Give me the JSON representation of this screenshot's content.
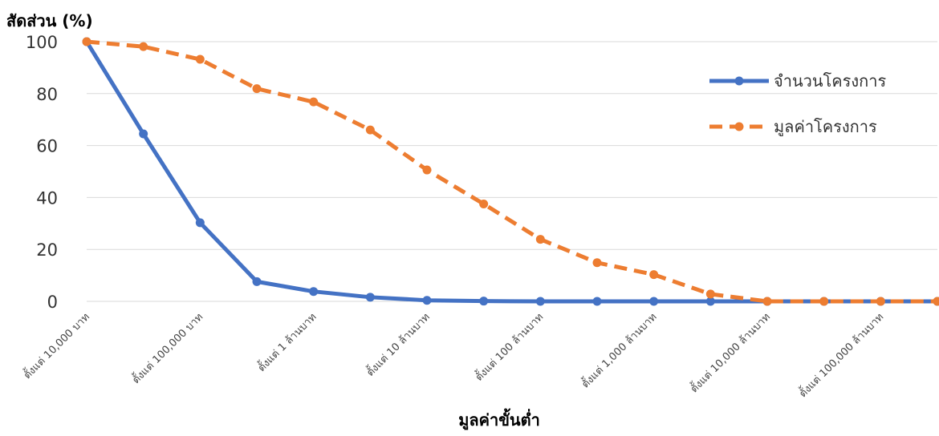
{
  "chart_data": {
    "type": "line",
    "title": "",
    "ylabel": "สัดส่วน (%)",
    "xlabel": "มูลค่าขั้นต่ำ",
    "categories": [
      "ตั้งแต่ 10,000 บาท",
      "ตั้งแต่ 100,000 บาท",
      "ตั้งแต่ 1 ล้านบาท",
      "ตั้งแต่ 10 ล้านบาท",
      "ตั้งแต่ 100 ล้านบาท",
      "ตั้งแต่ 1,000 ล้านบาท",
      "ตั้งแต่ 10,000 ล้านบาท",
      "ตั้งแต่ 100,000 ล้านบาท"
    ],
    "x": [
      1,
      1.5,
      2,
      2.5,
      3,
      3.5,
      4,
      4.5,
      5,
      5.5,
      6,
      6.5,
      7,
      7.5,
      8,
      8.5
    ],
    "ylim": [
      0,
      100
    ],
    "yticks": [
      0,
      20,
      40,
      60,
      80,
      100
    ],
    "grid": true,
    "legend_position": "top-right",
    "series": [
      {
        "name": "จำนวนโครงการ",
        "color": "#4472C4",
        "style": "solid",
        "values": [
          100,
          64.5,
          30.3,
          7.6,
          3.8,
          1.6,
          0.4,
          0.1,
          0,
          0,
          0,
          0,
          0,
          0,
          0,
          0
        ]
      },
      {
        "name": "มูลค่าโครงการ",
        "color": "#ED7D31",
        "style": "dashed",
        "values": [
          100,
          98.1,
          93.2,
          81.9,
          76.8,
          66,
          50.6,
          37.5,
          23.9,
          14.9,
          10.3,
          2.8,
          0,
          0,
          0,
          0
        ]
      }
    ]
  }
}
